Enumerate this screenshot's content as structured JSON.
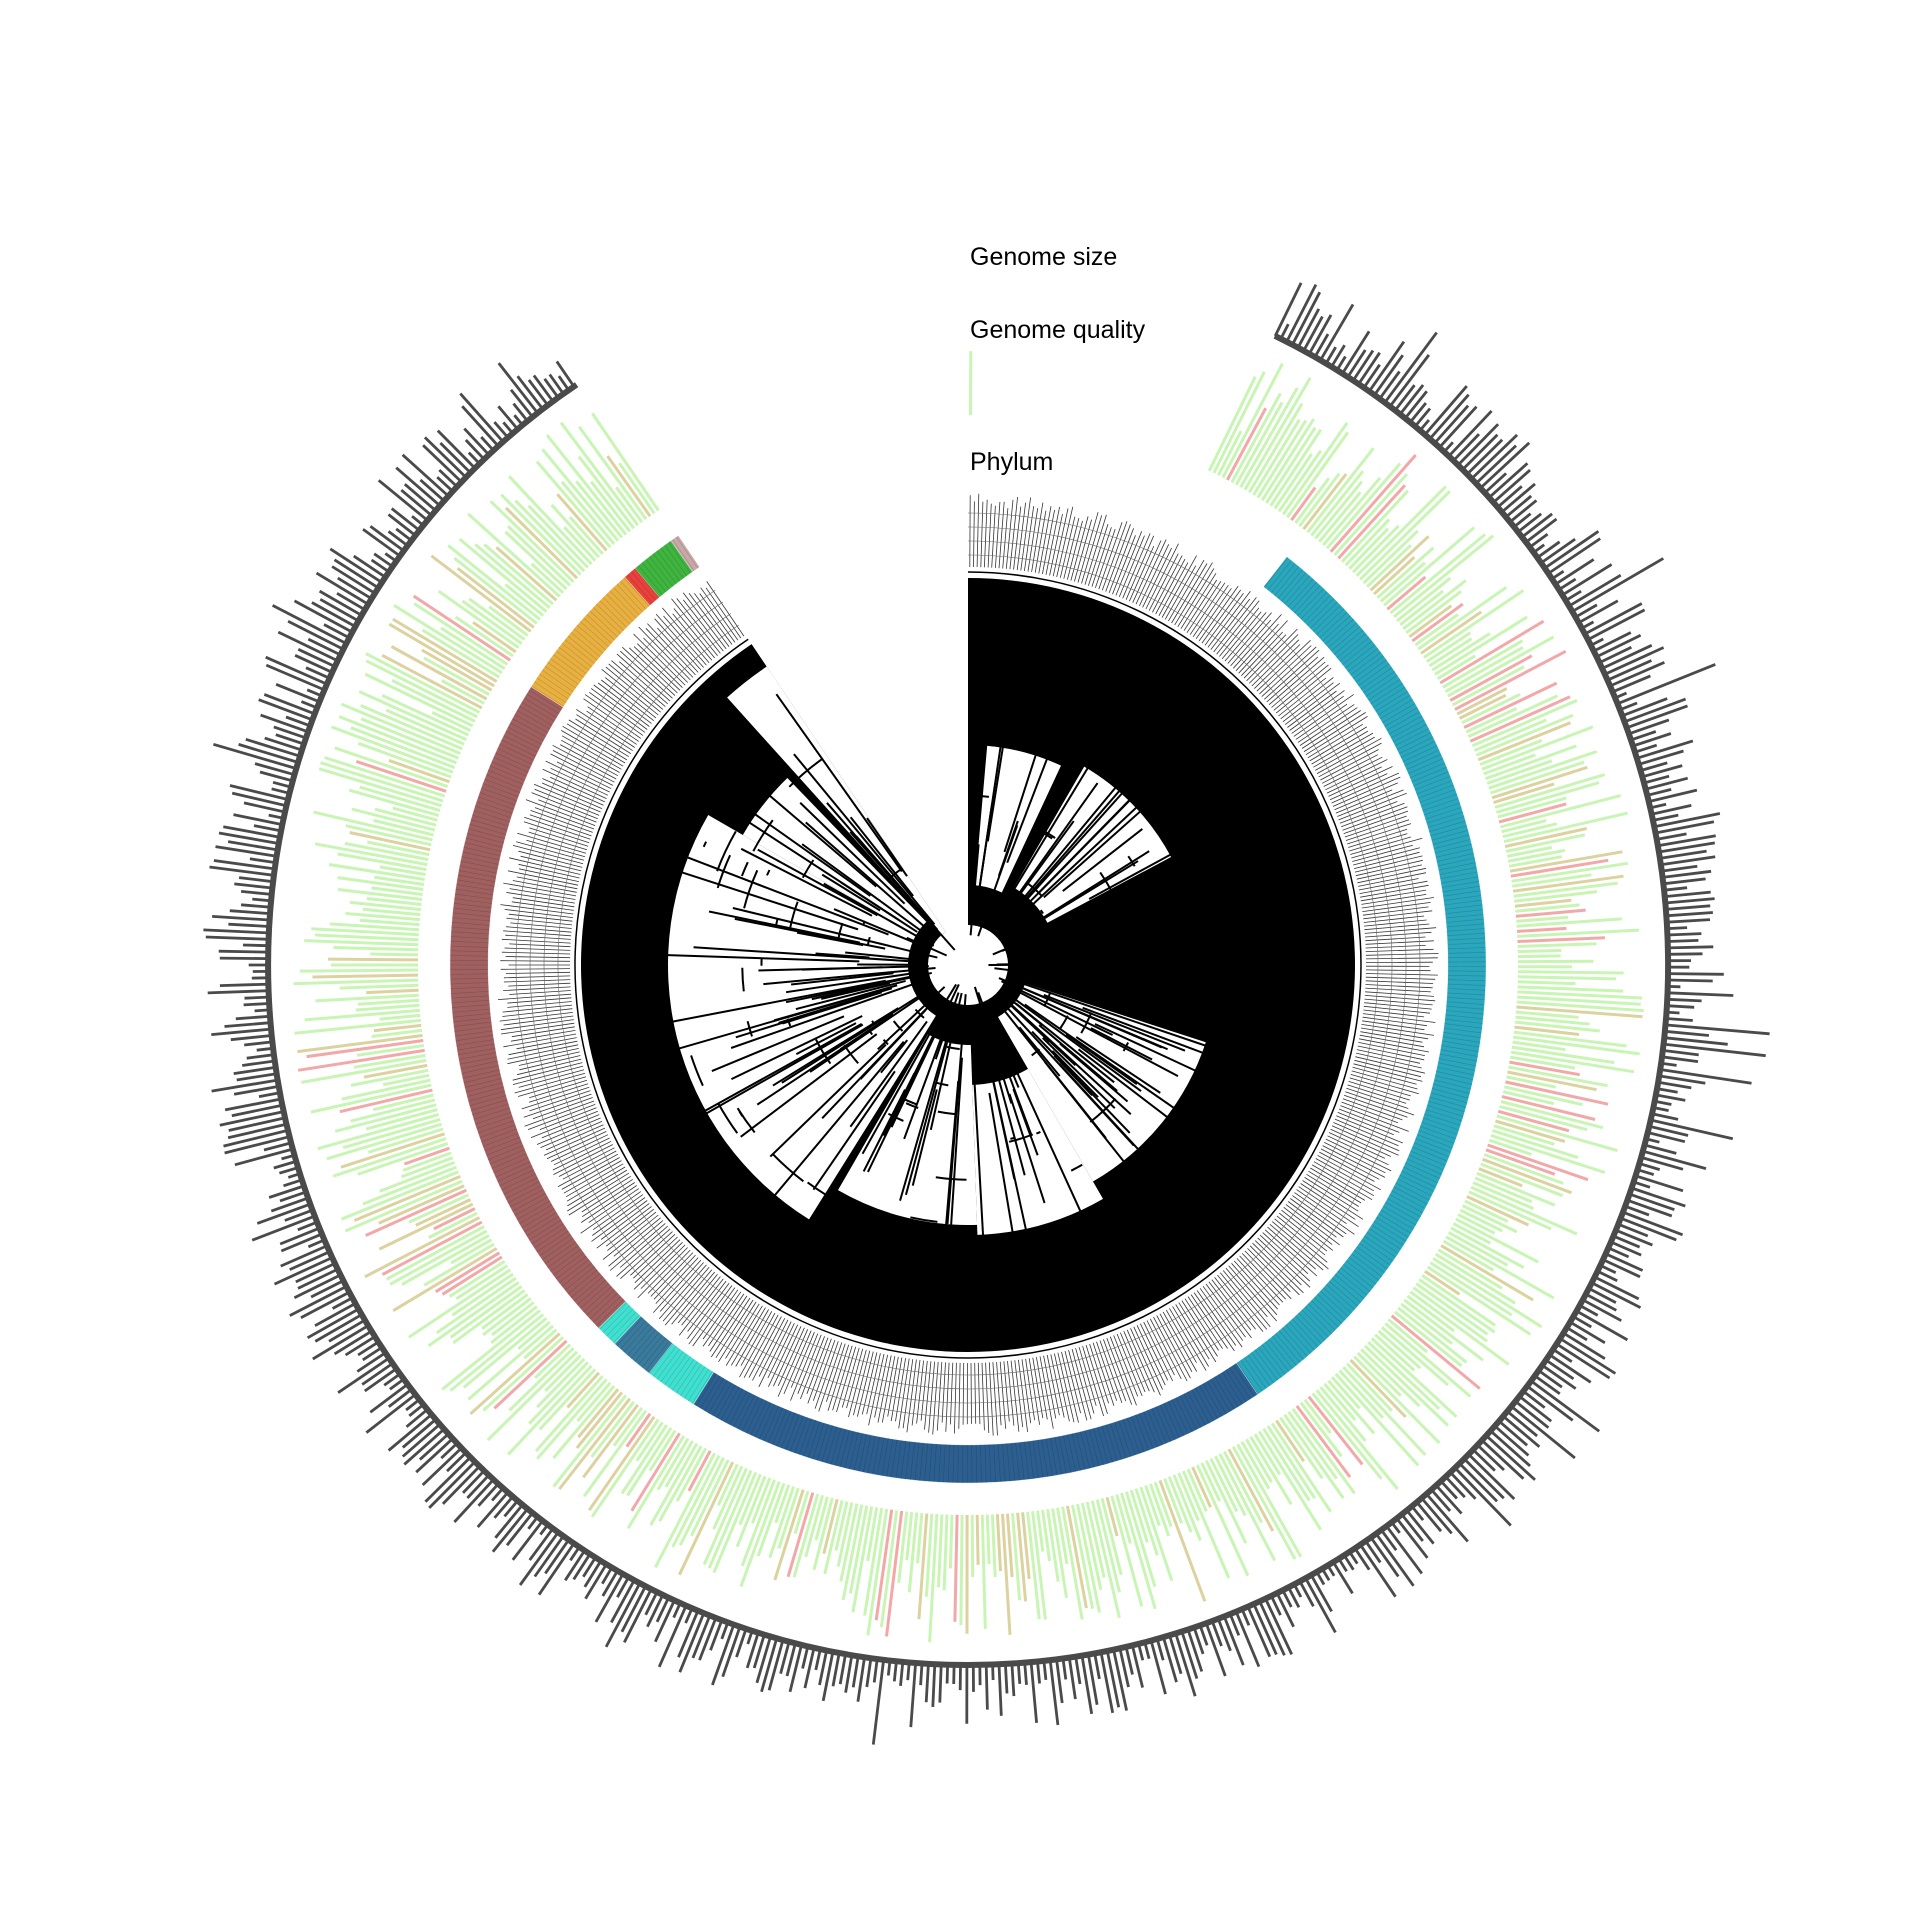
{
  "figure": {
    "ring_labels": {
      "genome_size": "Genome size",
      "genome_quality": "Genome quality",
      "phylum": "Phylum"
    },
    "colors": {
      "tree": "#000000",
      "genome_size_bar": "#4a4a4a",
      "quality_high": "#c8f5b4",
      "quality_mid": "#dcd2a0",
      "quality_low": "#f2a8a8",
      "phylum_palette": [
        "#a0d890",
        "#e8413c",
        "#3fb43f",
        "#c8a8a8",
        "#e8b040",
        "#a06060",
        "#40e0d0",
        "#3a7a9c",
        "#2c5f8f",
        "#2aa6bd"
      ]
    }
  }
}
